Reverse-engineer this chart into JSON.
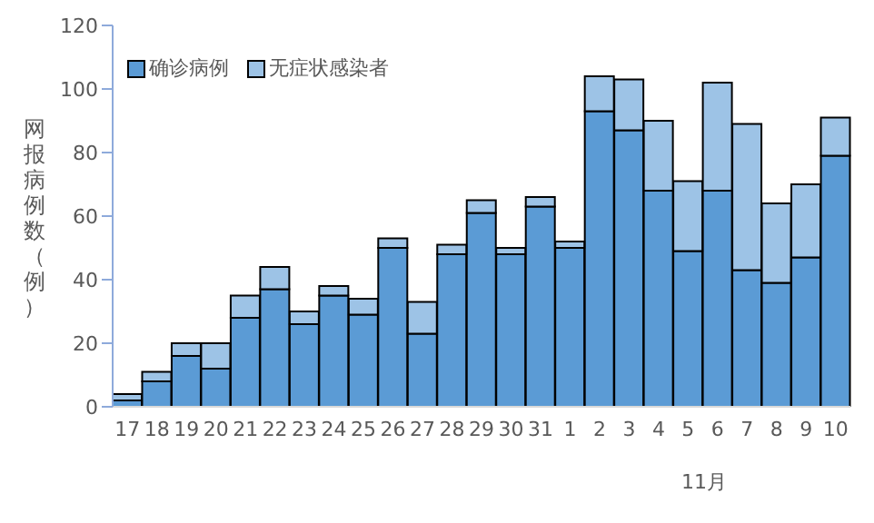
{
  "chart_data": {
    "type": "bar",
    "stacked": true,
    "ylabel": "网报病例数（例）",
    "categories": [
      "17",
      "18",
      "19",
      "20",
      "21",
      "22",
      "23",
      "24",
      "25",
      "26",
      "27",
      "28",
      "29",
      "30",
      "31",
      "1",
      "2",
      "3",
      "4",
      "5",
      "6",
      "7",
      "8",
      "9",
      "10"
    ],
    "series": [
      {
        "name": "确诊病例",
        "color": "#5b9bd5",
        "values": [
          2,
          8,
          16,
          12,
          28,
          37,
          26,
          35,
          29,
          50,
          23,
          48,
          61,
          48,
          63,
          50,
          93,
          87,
          68,
          49,
          68,
          43,
          39,
          47,
          79
        ]
      },
      {
        "name": "无症状感染者",
        "color": "#9dc3e6",
        "values": [
          2,
          3,
          4,
          8,
          7,
          7,
          4,
          3,
          5,
          3,
          10,
          3,
          4,
          2,
          3,
          2,
          11,
          16,
          22,
          22,
          34,
          46,
          25,
          23,
          12
        ]
      }
    ],
    "ylim": [
      0,
      120
    ],
    "yticks": [
      0,
      20,
      40,
      60,
      80,
      100,
      120
    ],
    "legend": "top left",
    "annotations": [
      "11月"
    ]
  }
}
